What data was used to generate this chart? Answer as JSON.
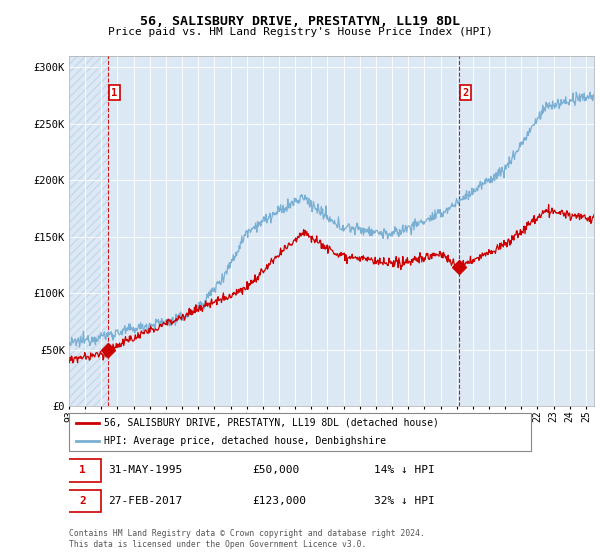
{
  "title": "56, SALISBURY DRIVE, PRESTATYN, LL19 8DL",
  "subtitle": "Price paid vs. HM Land Registry's House Price Index (HPI)",
  "xlim_start": 1993.0,
  "xlim_end": 2025.5,
  "ylim": [
    0,
    310000
  ],
  "yticks": [
    0,
    50000,
    100000,
    150000,
    200000,
    250000,
    300000
  ],
  "ytick_labels": [
    "£0",
    "£50K",
    "£100K",
    "£150K",
    "£200K",
    "£250K",
    "£300K"
  ],
  "sale1_date": 1995.41,
  "sale1_price": 50000,
  "sale1_label": "1",
  "sale2_date": 2017.16,
  "sale2_price": 123000,
  "sale2_label": "2",
  "hpi_color": "#7aafd4",
  "price_color": "#cc0000",
  "dashed_color": "#cc0000",
  "bg_color": "#dce9f5",
  "hatch_color": "#c5d8ec",
  "legend1": "56, SALISBURY DRIVE, PRESTATYN, LL19 8DL (detached house)",
  "legend2": "HPI: Average price, detached house, Denbighshire",
  "footnote": "Contains HM Land Registry data © Crown copyright and database right 2024.\nThis data is licensed under the Open Government Licence v3.0.",
  "xtick_years": [
    1993,
    1994,
    1995,
    1996,
    1997,
    1998,
    1999,
    2000,
    2001,
    2002,
    2003,
    2004,
    2005,
    2006,
    2007,
    2008,
    2009,
    2010,
    2011,
    2012,
    2013,
    2014,
    2015,
    2016,
    2017,
    2018,
    2019,
    2020,
    2021,
    2022,
    2023,
    2024,
    2025
  ]
}
